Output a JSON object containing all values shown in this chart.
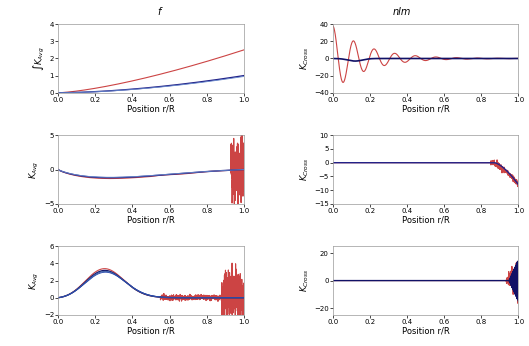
{
  "title_left": "f",
  "title_right": "nlm",
  "figsize": [
    5.29,
    3.46
  ],
  "dpi": 100,
  "xlim": [
    0,
    1
  ],
  "xlabel": "Position r/R",
  "plots": [
    {
      "ylabel": "$\\int K_{Avg}$",
      "ylim": [
        0,
        4
      ],
      "yticks": [
        0,
        1,
        2,
        3,
        4
      ],
      "lines": [
        {
          "color": "#cc4444",
          "lw": 0.8,
          "type": "cumulative_red",
          "scale": 1.0
        },
        {
          "color": "#222288",
          "lw": 1.0,
          "type": "cumulative_blue",
          "scale": 1.0
        },
        {
          "color": "#6688cc",
          "lw": 0.6,
          "type": "cumulative_lblue",
          "scale": 1.0
        }
      ]
    },
    {
      "ylabel": "$K_{Cross}$",
      "ylim": [
        -40,
        40
      ],
      "yticks": [
        -40,
        -20,
        0,
        20,
        40
      ],
      "lines": [
        {
          "color": "#cc4444",
          "lw": 0.8,
          "type": "osc_decay_red",
          "scale": 1.0
        },
        {
          "color": "#111166",
          "lw": 1.2,
          "type": "small_bump_blue",
          "scale": 1.0
        }
      ]
    },
    {
      "ylabel": "$K_{Avg}$",
      "ylim": [
        -5,
        5
      ],
      "yticks": [
        -5,
        0,
        5
      ],
      "lines": [
        {
          "color": "#cc4444",
          "lw": 0.8,
          "type": "dip_red",
          "scale": 1.0
        },
        {
          "color": "#222288",
          "lw": 1.0,
          "type": "dip_blue",
          "scale": 1.0
        },
        {
          "color": "#6688cc",
          "lw": 0.6,
          "type": "dip_lblue",
          "scale": 1.0
        }
      ]
    },
    {
      "ylabel": "$K_{Cross}$",
      "ylim": [
        -15,
        10
      ],
      "yticks": [
        -15,
        -10,
        -5,
        0,
        5,
        10
      ],
      "lines": [
        {
          "color": "#cc4444",
          "lw": 0.8,
          "type": "drop_end_red",
          "scale": 1.0
        },
        {
          "color": "#222288",
          "lw": 1.0,
          "type": "drop_end_blue",
          "scale": 1.0
        }
      ]
    },
    {
      "ylabel": "$K_{Avg}$",
      "ylim": [
        -2,
        6
      ],
      "yticks": [
        -2,
        0,
        2,
        4,
        6
      ],
      "lines": [
        {
          "color": "#cc4444",
          "lw": 0.8,
          "type": "bell_red",
          "scale": 1.0
        },
        {
          "color": "#111166",
          "lw": 1.0,
          "type": "bell_dark",
          "scale": 1.0
        },
        {
          "color": "#4466aa",
          "lw": 0.8,
          "type": "bell_med",
          "scale": 1.0
        },
        {
          "color": "#2244aa",
          "lw": 0.6,
          "type": "bell_light",
          "scale": 1.0
        }
      ]
    },
    {
      "ylabel": "$K_{Cross}$",
      "ylim": [
        -25,
        25
      ],
      "yticks": [
        -20,
        0,
        20
      ],
      "lines": [
        {
          "color": "#cc4444",
          "lw": 0.8,
          "type": "spike_end_red",
          "scale": 1.0
        },
        {
          "color": "#111166",
          "lw": 1.0,
          "type": "spike_end_blue",
          "scale": 1.0
        }
      ]
    }
  ]
}
